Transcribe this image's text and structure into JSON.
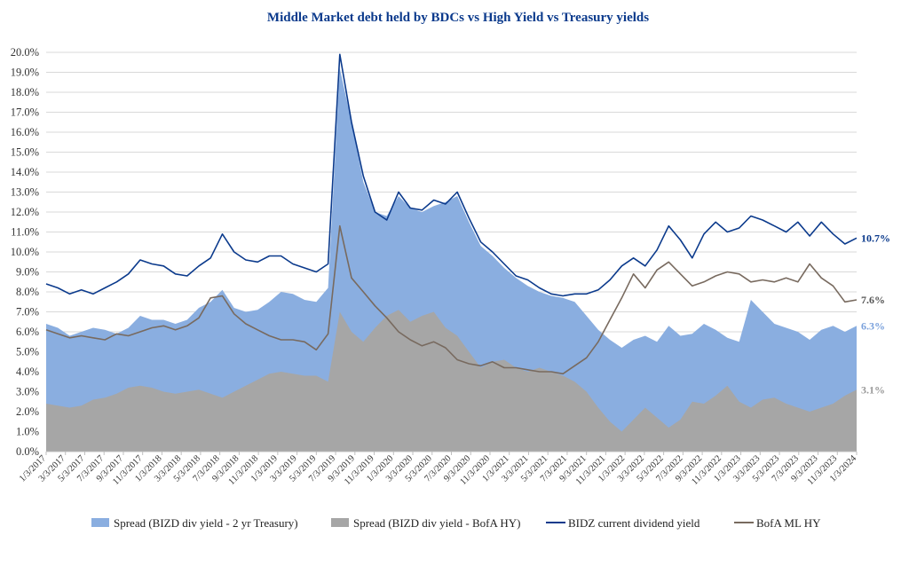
{
  "chart_data": {
    "type": "area",
    "title": "Middle Market debt held by BDCs vs High Yield vs Treasury yields",
    "xlabel": "",
    "ylabel": "",
    "ylim": [
      0,
      20
    ],
    "y_ticks": [
      "0.0%",
      "1.0%",
      "2.0%",
      "3.0%",
      "4.0%",
      "5.0%",
      "6.0%",
      "7.0%",
      "8.0%",
      "9.0%",
      "10.0%",
      "11.0%",
      "12.0%",
      "13.0%",
      "14.0%",
      "15.0%",
      "16.0%",
      "17.0%",
      "18.0%",
      "19.0%",
      "20.0%"
    ],
    "x_ticks": [
      "1/3/2017",
      "3/3/2017",
      "5/3/2017",
      "7/3/2017",
      "9/3/2017",
      "11/3/2017",
      "1/3/2018",
      "3/3/2018",
      "5/3/2018",
      "7/3/2018",
      "9/3/2018",
      "11/3/2018",
      "1/3/2019",
      "3/3/2019",
      "5/3/2019",
      "7/3/2019",
      "9/3/2019",
      "11/3/2019",
      "1/3/2020",
      "3/3/2020",
      "5/3/2020",
      "7/3/2020",
      "9/3/2020",
      "11/3/2020",
      "1/3/2021",
      "3/3/2021",
      "5/3/2021",
      "7/3/2021",
      "9/3/2021",
      "11/3/2021",
      "1/3/2022",
      "3/3/2022",
      "5/3/2022",
      "7/3/2022",
      "9/3/2022",
      "11/3/2022",
      "1/3/2023",
      "3/3/2023",
      "5/3/2023",
      "7/3/2023",
      "9/3/2023",
      "11/3/2023",
      "1/3/2024"
    ],
    "x": [
      "2017-01",
      "2017-02",
      "2017-03",
      "2017-05",
      "2017-07",
      "2017-09",
      "2017-11",
      "2018-01",
      "2018-03",
      "2018-05",
      "2018-07",
      "2018-09",
      "2018-10",
      "2018-11",
      "2018-12",
      "2019-01",
      "2019-02",
      "2019-03",
      "2019-05",
      "2019-07",
      "2019-09",
      "2019-11",
      "2020-01",
      "2020-02",
      "2020-03a",
      "2020-03b",
      "2020-03c",
      "2020-04a",
      "2020-04b",
      "2020-05",
      "2020-06",
      "2020-07",
      "2020-08",
      "2020-09",
      "2020-10",
      "2020-11",
      "2020-12",
      "2021-01",
      "2021-02",
      "2021-03",
      "2021-04",
      "2021-05",
      "2021-07",
      "2021-09",
      "2021-11",
      "2022-01",
      "2022-03",
      "2022-04",
      "2022-05",
      "2022-06",
      "2022-07",
      "2022-08",
      "2022-09",
      "2022-10",
      "2022-11",
      "2022-12",
      "2023-01",
      "2023-02",
      "2023-03",
      "2023-04",
      "2023-05",
      "2023-06",
      "2023-07",
      "2023-08",
      "2023-09",
      "2023-10",
      "2023-11",
      "2023-12",
      "2024-01",
      "2024-02"
    ],
    "series": [
      {
        "name": "Spread (BIZD div yield - 2 yr Treasury)",
        "color": "#8aaee0",
        "kind": "area",
        "values": [
          6.4,
          6.2,
          5.8,
          6.0,
          6.2,
          6.1,
          5.9,
          6.2,
          6.8,
          6.6,
          6.6,
          6.4,
          6.6,
          7.2,
          7.5,
          8.1,
          7.2,
          7.0,
          7.1,
          7.5,
          8.0,
          7.9,
          7.6,
          7.5,
          8.2,
          19.2,
          16.5,
          13.5,
          12.0,
          11.8,
          12.8,
          12.2,
          12.0,
          12.3,
          12.5,
          12.8,
          11.5,
          10.3,
          9.8,
          9.2,
          8.7,
          8.3,
          8.0,
          7.8,
          7.7,
          7.5,
          6.8,
          6.1,
          5.6,
          5.2,
          5.6,
          5.8,
          5.5,
          6.3,
          5.8,
          5.9,
          6.4,
          6.1,
          5.7,
          5.5,
          7.6,
          7.0,
          6.4,
          6.2,
          6.0,
          5.6,
          6.1,
          6.3,
          6.0,
          6.3
        ]
      },
      {
        "name": "Spread (BIZD div yield - BofA HY)",
        "color": "#a6a6a6",
        "kind": "area",
        "values": [
          2.4,
          2.3,
          2.2,
          2.3,
          2.6,
          2.7,
          2.9,
          3.2,
          3.3,
          3.2,
          3.0,
          2.9,
          3.0,
          3.1,
          2.9,
          2.7,
          3.0,
          3.3,
          3.6,
          3.9,
          4.0,
          3.9,
          3.8,
          3.8,
          3.5,
          7.0,
          6.0,
          5.5,
          6.2,
          6.8,
          7.1,
          6.5,
          6.8,
          7.0,
          6.2,
          5.8,
          5.0,
          4.2,
          4.5,
          4.6,
          4.2,
          4.0,
          4.2,
          4.0,
          3.8,
          3.5,
          3.0,
          2.2,
          1.5,
          1.0,
          1.6,
          2.2,
          1.7,
          1.2,
          1.6,
          2.5,
          2.4,
          2.8,
          3.3,
          2.5,
          2.2,
          2.6,
          2.7,
          2.4,
          2.2,
          2.0,
          2.2,
          2.4,
          2.8,
          3.1
        ]
      },
      {
        "name": "BIDZ current dividend yield",
        "color": "#0b3a8c",
        "kind": "line",
        "values": [
          8.4,
          8.2,
          7.9,
          8.1,
          7.9,
          8.2,
          8.5,
          8.9,
          9.6,
          9.4,
          9.3,
          8.9,
          8.8,
          9.3,
          9.7,
          10.9,
          10.0,
          9.6,
          9.5,
          9.8,
          9.8,
          9.4,
          9.2,
          9.0,
          9.4,
          19.9,
          16.5,
          13.8,
          12.0,
          11.6,
          13.0,
          12.2,
          12.1,
          12.6,
          12.4,
          13.0,
          11.7,
          10.5,
          10.0,
          9.4,
          8.8,
          8.6,
          8.2,
          7.9,
          7.8,
          7.9,
          7.9,
          8.1,
          8.6,
          9.3,
          9.7,
          9.3,
          10.1,
          11.3,
          10.6,
          9.7,
          10.9,
          11.5,
          11.0,
          11.2,
          11.8,
          11.6,
          11.3,
          11.0,
          11.5,
          10.8,
          11.5,
          10.9,
          10.4,
          10.7
        ]
      },
      {
        "name": "BofA ML HY",
        "color": "#786a5f",
        "kind": "line",
        "values": [
          6.1,
          5.9,
          5.7,
          5.8,
          5.7,
          5.6,
          5.9,
          5.8,
          6.0,
          6.2,
          6.3,
          6.1,
          6.3,
          6.7,
          7.7,
          7.8,
          6.9,
          6.4,
          6.1,
          5.8,
          5.6,
          5.6,
          5.5,
          5.1,
          5.9,
          11.3,
          8.7,
          8.0,
          7.3,
          6.7,
          6.0,
          5.6,
          5.3,
          5.5,
          5.2,
          4.6,
          4.4,
          4.3,
          4.5,
          4.2,
          4.2,
          4.1,
          4.0,
          4.0,
          3.9,
          4.3,
          4.7,
          5.5,
          6.6,
          7.7,
          8.9,
          8.2,
          9.1,
          9.5,
          8.9,
          8.3,
          8.5,
          8.8,
          9.0,
          8.9,
          8.5,
          8.6,
          8.5,
          8.7,
          8.5,
          9.4,
          8.7,
          8.3,
          7.5,
          7.6
        ]
      }
    ],
    "end_labels": [
      {
        "text": "10.7%",
        "color": "#0b3a8c"
      },
      {
        "text": "7.6%",
        "color": "#555555"
      },
      {
        "text": "6.3%",
        "color": "#7aa1dc"
      },
      {
        "text": "3.1%",
        "color": "#9a9a9a"
      }
    ],
    "grid": true,
    "legend_position": "bottom"
  }
}
